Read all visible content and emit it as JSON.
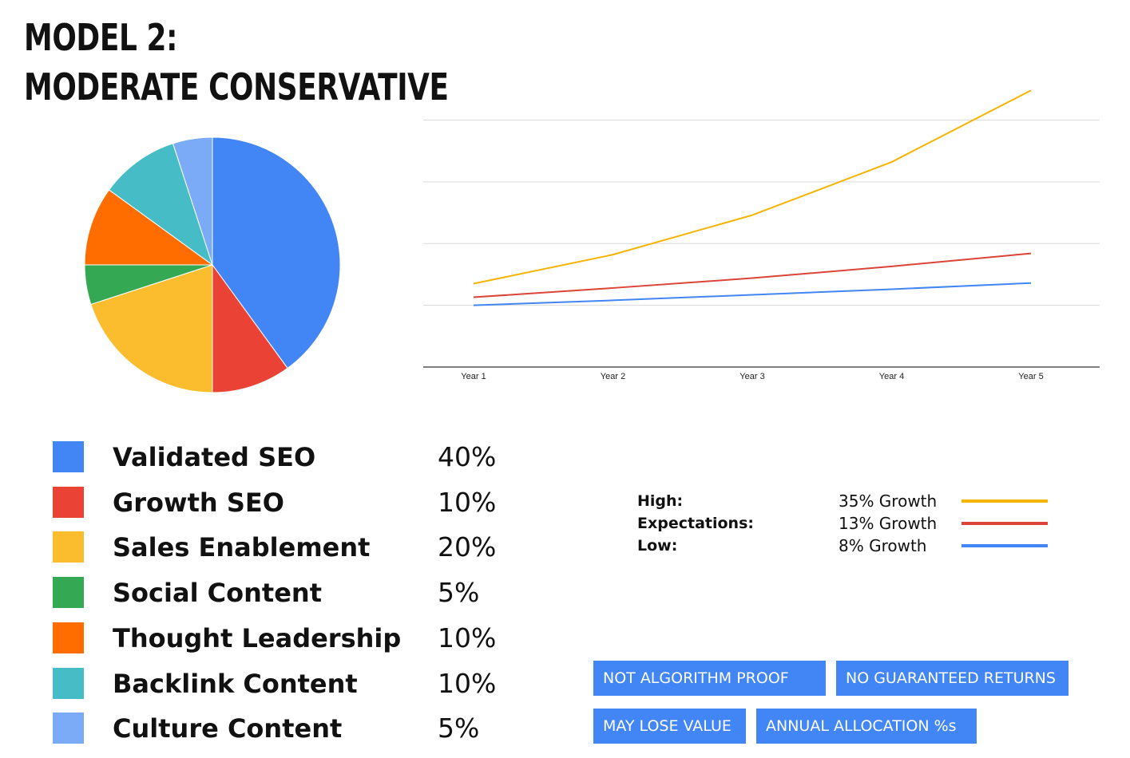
{
  "title": {
    "line1": "MODEL 2:",
    "line2": "MODERATE CONSERVATIVE"
  },
  "chart_data": [
    {
      "type": "pie",
      "slices": [
        {
          "label": "Validated SEO",
          "value": 40,
          "percent_label": "40%",
          "color": "#4285f4"
        },
        {
          "label": "Growth SEO",
          "value": 10,
          "percent_label": "10%",
          "color": "#ea4335"
        },
        {
          "label": "Sales Enablement",
          "value": 20,
          "percent_label": "20%",
          "color": "#fbbc2e"
        },
        {
          "label": "Social Content",
          "value": 5,
          "percent_label": "5%",
          "color": "#34a853"
        },
        {
          "label": "Thought Leadership",
          "value": 10,
          "percent_label": "10%",
          "color": "#ff6d01"
        },
        {
          "label": "Backlink Content",
          "value": 10,
          "percent_label": "10%",
          "color": "#46bdc6"
        },
        {
          "label": "Culture Content",
          "value": 5,
          "percent_label": "5%",
          "color": "#7baaf7"
        }
      ],
      "start_angle_deg": 0,
      "direction": "clockwise",
      "legend_position": "bottom"
    },
    {
      "type": "line",
      "categories": [
        "Year 1",
        "Year 2",
        "Year 3",
        "Year 4",
        "Year 5"
      ],
      "series": [
        {
          "name": "High:",
          "growth_label": "35% Growth",
          "color": "#f4b400",
          "values": [
            1.35,
            1.82,
            2.46,
            3.32,
            4.48
          ]
        },
        {
          "name": "Expectations:",
          "growth_label": "13% Growth",
          "color": "#db4437",
          "values": [
            1.13,
            1.28,
            1.44,
            1.63,
            1.84
          ]
        },
        {
          "name": "Low:",
          "growth_label": "8% Growth",
          "color": "#4285f4",
          "values": [
            1.0,
            1.08,
            1.17,
            1.26,
            1.36
          ]
        }
      ],
      "ylim": [
        0,
        4.6
      ],
      "gridlines": [
        1,
        2,
        3,
        4
      ],
      "grid": true,
      "y_tick_labels": false,
      "legend_position": "bottom-right"
    }
  ],
  "tags": [
    "NOT ALGORITHM PROOF",
    "NO GUARANTEED RETURNS",
    "MAY LOSE VALUE",
    "ANNUAL ALLOCATION %s"
  ]
}
